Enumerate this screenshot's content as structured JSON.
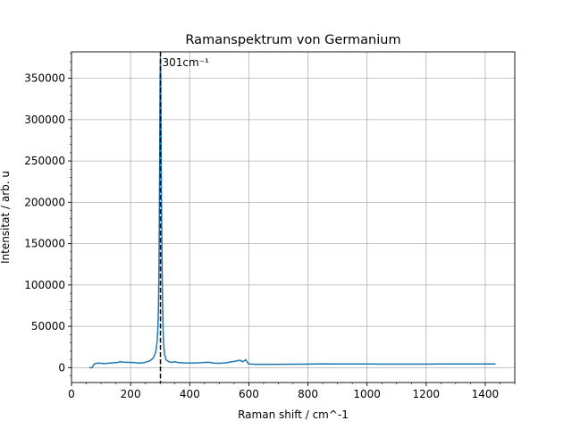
{
  "chart_data": {
    "type": "line",
    "title": "Ramanspektrum von Germanium",
    "xlabel": "Raman shift / cm^-1",
    "ylabel": "Intensitat / arb. u",
    "xlim": [
      0,
      1500
    ],
    "ylim": [
      -18000,
      382000
    ],
    "xticks": [
      0,
      200,
      400,
      600,
      800,
      1000,
      1200,
      1400
    ],
    "yticks": [
      0,
      50000,
      100000,
      150000,
      200000,
      250000,
      300000,
      350000
    ],
    "grid": true,
    "line_color": "#1f77b4",
    "series": [
      {
        "x": [
          60,
          70,
          75,
          80,
          90,
          100,
          110,
          120,
          130,
          140,
          150,
          160,
          165,
          170,
          180,
          190,
          200,
          210,
          220,
          230,
          240,
          250,
          260,
          270,
          275,
          280,
          285,
          288,
          290,
          292,
          294,
          296,
          297,
          298,
          299,
          300,
          301,
          302,
          303,
          304,
          306,
          308,
          310,
          312,
          315,
          320,
          330,
          340,
          350,
          360,
          380,
          400,
          420,
          440,
          460,
          470,
          480,
          500,
          520,
          540,
          550,
          560,
          570,
          575,
          580,
          585,
          590,
          595,
          600,
          620,
          650,
          700,
          750,
          800,
          850,
          900,
          950,
          1000,
          1050,
          1100,
          1150,
          1200,
          1250,
          1300,
          1350,
          1400,
          1435
        ],
        "y": [
          0,
          0,
          3500,
          5000,
          5500,
          5200,
          5000,
          5200,
          5500,
          5800,
          6000,
          6500,
          7500,
          6800,
          6500,
          6500,
          6200,
          6300,
          5800,
          5500,
          5800,
          6500,
          7500,
          9500,
          11000,
          14000,
          19000,
          26000,
          33000,
          45000,
          70000,
          120000,
          170000,
          230000,
          290000,
          355000,
          375000,
          345000,
          280000,
          220000,
          140000,
          80000,
          45000,
          28000,
          16000,
          9500,
          7000,
          6500,
          7000,
          6200,
          5800,
          5600,
          5700,
          6000,
          6500,
          6300,
          5500,
          5200,
          5600,
          7000,
          7500,
          8200,
          9000,
          8000,
          7200,
          8500,
          9500,
          6500,
          4500,
          4000,
          4000,
          4000,
          4100,
          4300,
          4600,
          4400,
          4400,
          4400,
          4300,
          4300,
          4300,
          4300,
          4400,
          4400,
          4400,
          4400,
          4500
        ]
      }
    ],
    "annotations": [
      {
        "x": 301,
        "label": "301cm⁻¹",
        "style": "dashed-vertical",
        "color": "#000000"
      }
    ]
  }
}
